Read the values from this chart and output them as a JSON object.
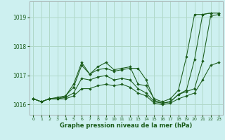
{
  "xlabel": "Graphe pression niveau de la mer (hPa)",
  "background_color": "#cdf0f0",
  "grid_color": "#b0d8c8",
  "line_color": "#1a5c1a",
  "xlim": [
    -0.5,
    23.5
  ],
  "ylim": [
    1015.65,
    1019.55
  ],
  "yticks": [
    1016,
    1017,
    1018,
    1019
  ],
  "xticks": [
    0,
    1,
    2,
    3,
    4,
    5,
    6,
    7,
    8,
    9,
    10,
    11,
    12,
    13,
    14,
    15,
    16,
    17,
    18,
    19,
    20,
    21,
    22,
    23
  ],
  "line1_y": [
    1016.2,
    1016.1,
    1016.2,
    1016.25,
    1016.3,
    1016.6,
    1017.35,
    1017.05,
    1017.2,
    1017.25,
    1017.15,
    1017.2,
    1017.25,
    1017.25,
    1016.85,
    1016.15,
    1016.05,
    1016.1,
    1016.35,
    1016.5,
    1017.55,
    1019.1,
    1019.15,
    1019.15
  ],
  "line2_y": [
    1016.2,
    1016.1,
    1016.2,
    1016.2,
    1016.3,
    1016.7,
    1017.45,
    1017.05,
    1017.3,
    1017.45,
    1017.2,
    1017.25,
    1017.3,
    1016.7,
    1016.65,
    1016.2,
    1016.1,
    1016.2,
    1016.5,
    1017.65,
    1019.1,
    1019.1,
    1019.15,
    1019.15
  ],
  "line3_y": [
    1016.2,
    1016.1,
    1016.2,
    1016.2,
    1016.25,
    1016.4,
    1016.9,
    1016.85,
    1016.95,
    1017.0,
    1016.85,
    1016.9,
    1016.85,
    1016.55,
    1016.4,
    1016.1,
    1016.05,
    1016.1,
    1016.35,
    1016.45,
    1016.55,
    1017.5,
    1019.05,
    1019.1
  ],
  "line4_y": [
    1016.2,
    1016.1,
    1016.2,
    1016.2,
    1016.2,
    1016.3,
    1016.55,
    1016.55,
    1016.65,
    1016.7,
    1016.65,
    1016.7,
    1016.6,
    1016.4,
    1016.3,
    1016.05,
    1016.0,
    1016.05,
    1016.2,
    1016.3,
    1016.4,
    1016.85,
    1017.35,
    1017.45
  ]
}
